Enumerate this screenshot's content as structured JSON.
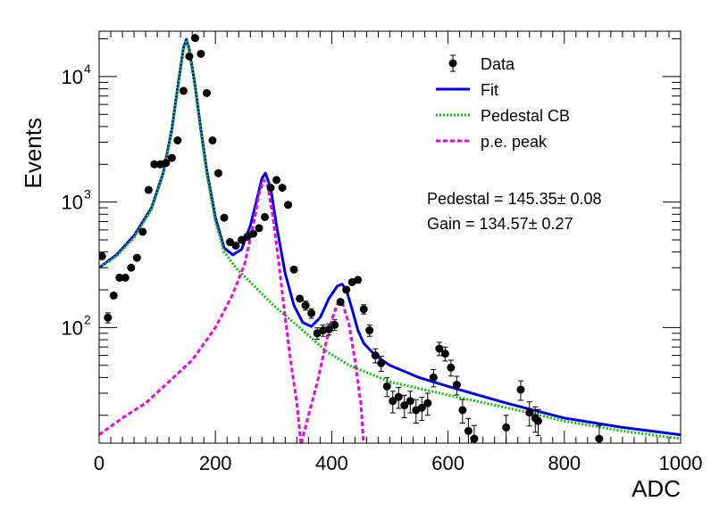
{
  "chart_data": {
    "type": "scatter",
    "xlabel": "ADC",
    "ylabel": "Events",
    "xlim": [
      0,
      1000
    ],
    "ylim": [
      12,
      23000
    ],
    "yscale": "log",
    "grid": false,
    "legend_position": "top-right",
    "x_ticks": [
      0,
      200,
      400,
      600,
      800,
      1000
    ],
    "y_ticks": [
      {
        "value": 100,
        "base": "10",
        "exp": "2"
      },
      {
        "value": 1000,
        "base": "10",
        "exp": "3"
      },
      {
        "value": 10000,
        "base": "10",
        "exp": "4"
      }
    ],
    "legend": [
      {
        "label": "Data",
        "kind": "marker",
        "color": "#000000"
      },
      {
        "label": "Fit",
        "kind": "line",
        "color": "#0000ee"
      },
      {
        "label": "Pedestal CB",
        "kind": "dotted",
        "color": "#00cc00"
      },
      {
        "label": "p.e. peak",
        "kind": "dashed",
        "color": "#ee00ee"
      }
    ],
    "annotations": [
      {
        "text": "Pedestal = 145.35± 0.08"
      },
      {
        "text": "Gain = 134.57± 0.27"
      }
    ],
    "series": [
      {
        "name": "Data",
        "style": "points",
        "color": "#000000",
        "points": [
          [
            5,
            370
          ],
          [
            15,
            120
          ],
          [
            25,
            180
          ],
          [
            35,
            250
          ],
          [
            45,
            250
          ],
          [
            55,
            300
          ],
          [
            65,
            360
          ],
          [
            75,
            580
          ],
          [
            85,
            1250
          ],
          [
            95,
            2000
          ],
          [
            105,
            2000
          ],
          [
            115,
            2050
          ],
          [
            125,
            2250
          ],
          [
            135,
            3100
          ],
          [
            145,
            7700
          ],
          [
            155,
            14500
          ],
          [
            165,
            20300
          ],
          [
            175,
            15200
          ],
          [
            185,
            7400
          ],
          [
            195,
            3100
          ],
          [
            205,
            1700
          ],
          [
            215,
            750
          ],
          [
            225,
            480
          ],
          [
            235,
            450
          ],
          [
            245,
            500
          ],
          [
            255,
            530
          ],
          [
            265,
            560
          ],
          [
            275,
            620
          ],
          [
            285,
            760
          ],
          [
            295,
            1300
          ],
          [
            305,
            1500
          ],
          [
            315,
            1300
          ],
          [
            325,
            950
          ],
          [
            335,
            290
          ],
          [
            345,
            170
          ],
          [
            355,
            150
          ],
          [
            365,
            130
          ],
          [
            375,
            90
          ],
          [
            385,
            95
          ],
          [
            395,
            97
          ],
          [
            405,
            105
          ],
          [
            415,
            160
          ],
          [
            425,
            200
          ],
          [
            435,
            230
          ],
          [
            445,
            240
          ],
          [
            455,
            140
          ],
          [
            465,
            95
          ],
          [
            475,
            60
          ],
          [
            485,
            52
          ],
          [
            495,
            34
          ],
          [
            505,
            26
          ],
          [
            515,
            28
          ],
          [
            525,
            24
          ],
          [
            535,
            26
          ],
          [
            545,
            22
          ],
          [
            555,
            23
          ],
          [
            565,
            25
          ],
          [
            575,
            40
          ],
          [
            585,
            68
          ],
          [
            595,
            62
          ],
          [
            605,
            48
          ],
          [
            615,
            35
          ],
          [
            625,
            22
          ],
          [
            635,
            15
          ],
          [
            645,
            13
          ],
          [
            700,
            16
          ],
          [
            725,
            32
          ],
          [
            740,
            21
          ],
          [
            750,
            19
          ],
          [
            755,
            18
          ],
          [
            860,
            13
          ]
        ]
      },
      {
        "name": "Fit",
        "style": "solid",
        "color": "#0000ee",
        "points": [
          [
            0,
            300
          ],
          [
            30,
            380
          ],
          [
            60,
            540
          ],
          [
            90,
            900
          ],
          [
            110,
            1700
          ],
          [
            125,
            3800
          ],
          [
            135,
            8200
          ],
          [
            145,
            17000
          ],
          [
            150,
            19800
          ],
          [
            155,
            16500
          ],
          [
            165,
            8500
          ],
          [
            175,
            3800
          ],
          [
            185,
            1800
          ],
          [
            200,
            750
          ],
          [
            215,
            430
          ],
          [
            230,
            380
          ],
          [
            245,
            420
          ],
          [
            260,
            650
          ],
          [
            270,
            1000
          ],
          [
            280,
            1550
          ],
          [
            286,
            1700
          ],
          [
            295,
            1300
          ],
          [
            305,
            650
          ],
          [
            320,
            270
          ],
          [
            335,
            150
          ],
          [
            350,
            110
          ],
          [
            365,
            102
          ],
          [
            380,
            120
          ],
          [
            395,
            170
          ],
          [
            410,
            215
          ],
          [
            418,
            222
          ],
          [
            425,
            200
          ],
          [
            435,
            140
          ],
          [
            445,
            95
          ],
          [
            455,
            75
          ],
          [
            475,
            60
          ],
          [
            500,
            50
          ],
          [
            550,
            40
          ],
          [
            600,
            34
          ],
          [
            700,
            25
          ],
          [
            800,
            19
          ],
          [
            900,
            16
          ],
          [
            1000,
            14
          ]
        ]
      },
      {
        "name": "Pedestal CB",
        "style": "dotted",
        "color": "#00cc00",
        "points": [
          [
            0,
            300
          ],
          [
            30,
            370
          ],
          [
            60,
            520
          ],
          [
            90,
            880
          ],
          [
            110,
            1650
          ],
          [
            125,
            3700
          ],
          [
            135,
            8000
          ],
          [
            145,
            16500
          ],
          [
            150,
            19500
          ],
          [
            155,
            16000
          ],
          [
            165,
            8200
          ],
          [
            175,
            3600
          ],
          [
            185,
            1700
          ],
          [
            200,
            700
          ],
          [
            215,
            400
          ],
          [
            235,
            300
          ],
          [
            260,
            230
          ],
          [
            300,
            150
          ],
          [
            350,
            95
          ],
          [
            390,
            65
          ],
          [
            430,
            50
          ],
          [
            500,
            37
          ],
          [
            600,
            29
          ],
          [
            700,
            23
          ],
          [
            800,
            18
          ],
          [
            900,
            15
          ],
          [
            1000,
            13
          ]
        ]
      },
      {
        "name": "p.e. peak",
        "style": "dashed",
        "color": "#ee00ee",
        "points_segments": [
          [
            [
              0,
              14
            ],
            [
              40,
              19
            ],
            [
              80,
              25
            ],
            [
              120,
              37
            ],
            [
              160,
              55
            ],
            [
              200,
              100
            ],
            [
              230,
              185
            ],
            [
              250,
              320
            ],
            [
              265,
              650
            ],
            [
              275,
              1150
            ],
            [
              283,
              1500
            ],
            [
              290,
              1350
            ],
            [
              300,
              700
            ],
            [
              310,
              300
            ],
            [
              320,
              120
            ],
            [
              330,
              52
            ],
            [
              340,
              25
            ],
            [
              347,
              12
            ]
          ],
          [
            [
              348,
              12
            ],
            [
              360,
              20
            ],
            [
              375,
              36
            ],
            [
              390,
              75
            ],
            [
              400,
              115
            ],
            [
              410,
              155
            ],
            [
              415,
              162
            ],
            [
              420,
              150
            ],
            [
              430,
              105
            ],
            [
              440,
              55
            ],
            [
              450,
              25
            ],
            [
              455,
              12
            ]
          ]
        ]
      }
    ]
  }
}
